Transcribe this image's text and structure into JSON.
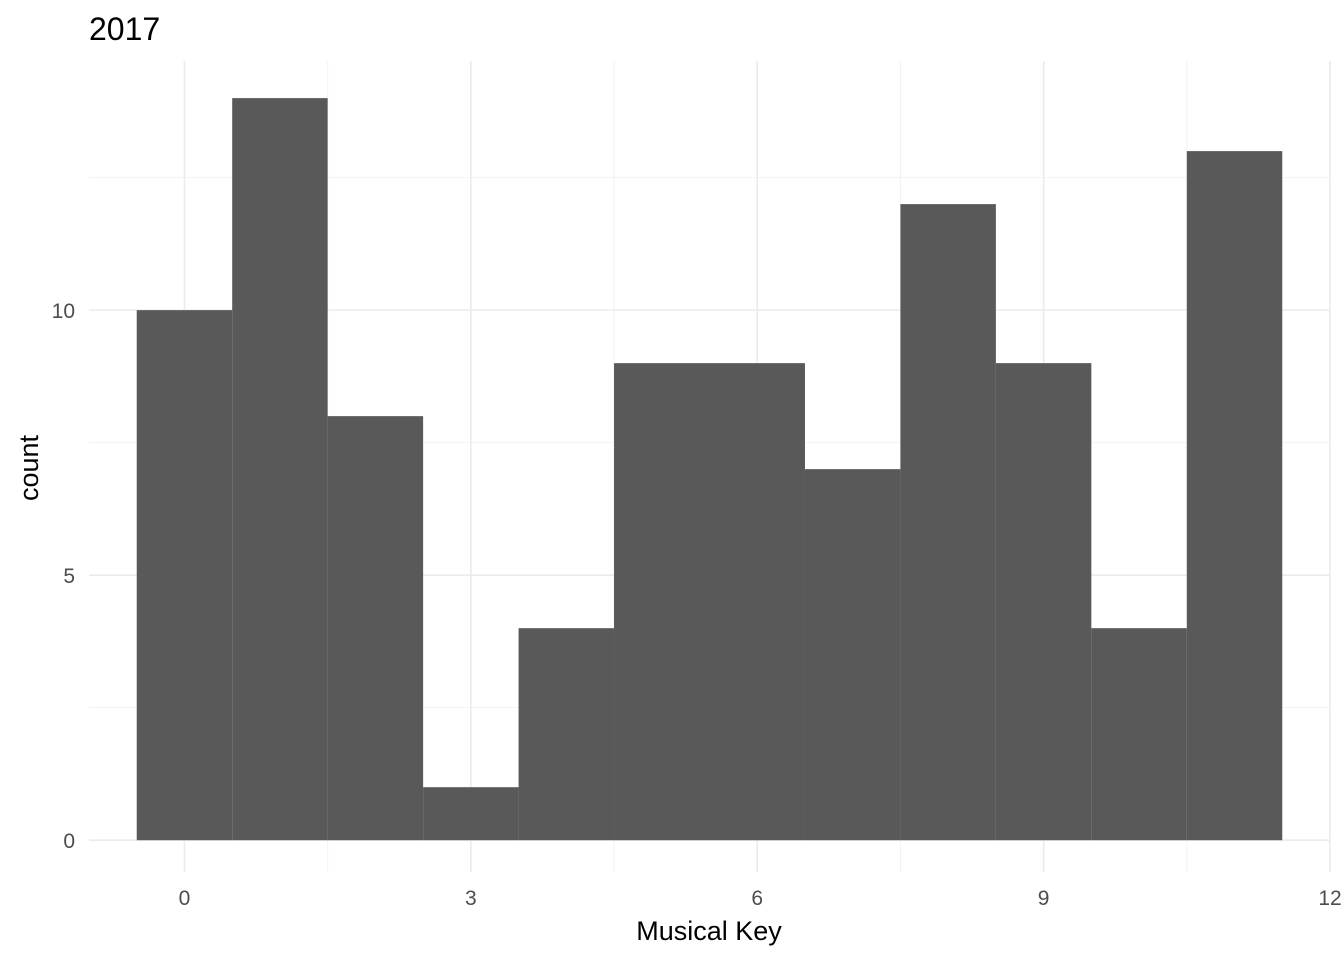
{
  "chart_data": {
    "type": "bar",
    "title": "2017",
    "xlabel": "Musical Key",
    "ylabel": "count",
    "bin_width": 1,
    "bins": [
      {
        "center": 0,
        "count": 10
      },
      {
        "center": 1,
        "count": 14
      },
      {
        "center": 2,
        "count": 8
      },
      {
        "center": 3,
        "count": 1
      },
      {
        "center": 4,
        "count": 4
      },
      {
        "center": 5,
        "count": 9
      },
      {
        "center": 6,
        "count": 9
      },
      {
        "center": 7,
        "count": 7
      },
      {
        "center": 8,
        "count": 12
      },
      {
        "center": 9,
        "count": 9
      },
      {
        "center": 10,
        "count": 4
      },
      {
        "center": 11,
        "count": 13
      }
    ],
    "xlim": [
      -1.0,
      12.0
    ],
    "ylim": [
      -0.6,
      14.7
    ],
    "x_ticks": [
      0,
      3,
      6,
      9,
      12
    ],
    "x_tick_labels": [
      "0",
      "3",
      "6",
      "9",
      "12"
    ],
    "x_minor_ticks": [
      1.5,
      4.5,
      7.5,
      10.5
    ],
    "y_ticks": [
      0,
      5,
      10
    ],
    "y_tick_labels": [
      "0",
      "5",
      "10"
    ],
    "y_minor_ticks": [
      2.5,
      7.5,
      12.5
    ],
    "grid": true,
    "legend": "none",
    "bar_color": "#595959"
  }
}
